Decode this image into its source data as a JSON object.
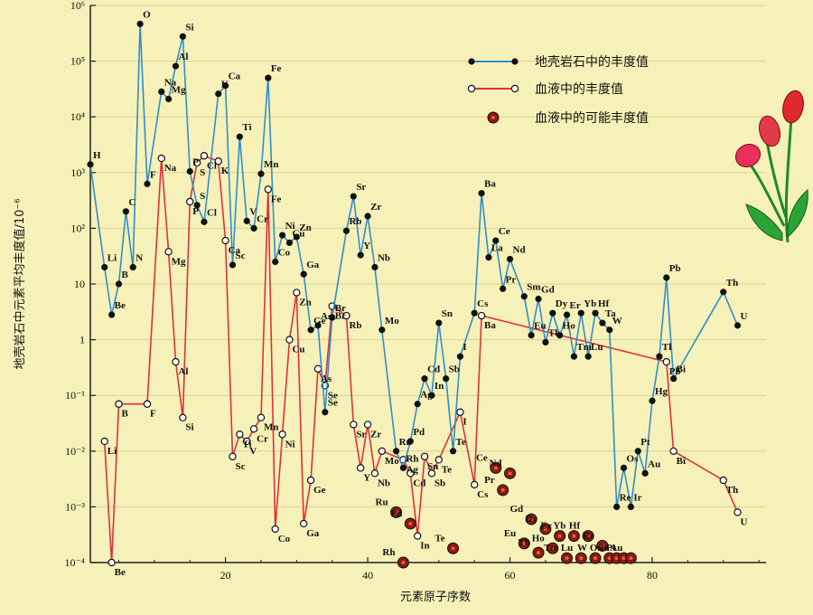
{
  "chart_data": {
    "type": "line",
    "xlabel": "元素原子序数",
    "ylabel": "地壳岩石中元素平均丰度值/10⁻⁶",
    "y_scale": "log",
    "ylim": [
      0.0001,
      1000000
    ],
    "xlim": [
      1,
      96
    ],
    "x_ticks": [
      20,
      40,
      60,
      80
    ],
    "y_ticks": [
      "10⁻⁴",
      "10⁻³",
      "10⁻²",
      "10⁻¹",
      "1",
      "10",
      "10²",
      "10³",
      "10⁴",
      "10⁵",
      "10⁶"
    ],
    "legend_placement": "top-right",
    "colors": {
      "crust": "#2f8fc8",
      "blood": "#e0303a",
      "possible": "#8a1a10",
      "marker": "#111111"
    },
    "legend": [
      {
        "label": "地壳岩石中的丰度值",
        "marker": "filled"
      },
      {
        "label": "血液中的丰度值",
        "marker": "open"
      },
      {
        "label": "血液中的可能丰度值",
        "marker": "possible"
      }
    ],
    "series": [
      {
        "name": "地壳岩石中的丰度值",
        "points": [
          {
            "x": 1,
            "y": 1400,
            "label": "H"
          },
          {
            "x": 3,
            "y": 20,
            "label": "Li"
          },
          {
            "x": 4,
            "y": 2.8,
            "label": "Be"
          },
          {
            "x": 5,
            "y": 10,
            "label": "B"
          },
          {
            "x": 6,
            "y": 200,
            "label": "C"
          },
          {
            "x": 7,
            "y": 20,
            "label": "N"
          },
          {
            "x": 8,
            "y": 466000,
            "label": "O"
          },
          {
            "x": 9,
            "y": 625,
            "label": "F"
          },
          {
            "x": 11,
            "y": 28300,
            "label": "Na"
          },
          {
            "x": 12,
            "y": 20900,
            "label": "Mg"
          },
          {
            "x": 13,
            "y": 81300,
            "label": "Al"
          },
          {
            "x": 14,
            "y": 277200,
            "label": "Si"
          },
          {
            "x": 15,
            "y": 1050,
            "label": "P"
          },
          {
            "x": 16,
            "y": 260,
            "label": "S"
          },
          {
            "x": 17,
            "y": 130,
            "label": "Cl"
          },
          {
            "x": 19,
            "y": 25900,
            "label": "K"
          },
          {
            "x": 20,
            "y": 36300,
            "label": "Ca"
          },
          {
            "x": 21,
            "y": 22,
            "label": "Sc"
          },
          {
            "x": 22,
            "y": 4400,
            "label": "Ti"
          },
          {
            "x": 23,
            "y": 135,
            "label": "V"
          },
          {
            "x": 24,
            "y": 100,
            "label": "Cr"
          },
          {
            "x": 25,
            "y": 950,
            "label": "Mn"
          },
          {
            "x": 26,
            "y": 50000,
            "label": "Fe"
          },
          {
            "x": 27,
            "y": 25,
            "label": "Co"
          },
          {
            "x": 28,
            "y": 75,
            "label": "Ni"
          },
          {
            "x": 29,
            "y": 55,
            "label": "Cu"
          },
          {
            "x": 30,
            "y": 70,
            "label": "Zn"
          },
          {
            "x": 31,
            "y": 15,
            "label": "Ga"
          },
          {
            "x": 32,
            "y": 1.5,
            "label": "Ge"
          },
          {
            "x": 33,
            "y": 1.8,
            "label": "As"
          },
          {
            "x": 34,
            "y": 0.05,
            "label": "Se"
          },
          {
            "x": 35,
            "y": 2.5,
            "label": "Br"
          },
          {
            "x": 37,
            "y": 90,
            "label": "Rb"
          },
          {
            "x": 38,
            "y": 375,
            "label": "Sr"
          },
          {
            "x": 39,
            "y": 33,
            "label": "Y"
          },
          {
            "x": 40,
            "y": 165,
            "label": "Zr"
          },
          {
            "x": 41,
            "y": 20,
            "label": "Nb"
          },
          {
            "x": 42,
            "y": 1.5,
            "label": "Mo"
          },
          {
            "x": 44,
            "y": 0.01,
            "label": "Ru"
          },
          {
            "x": 45,
            "y": 0.005,
            "label": "Rh"
          },
          {
            "x": 46,
            "y": 0.015,
            "label": "Pd"
          },
          {
            "x": 47,
            "y": 0.07,
            "label": "Ag"
          },
          {
            "x": 48,
            "y": 0.2,
            "label": "Cd"
          },
          {
            "x": 49,
            "y": 0.1,
            "label": "In"
          },
          {
            "x": 50,
            "y": 2,
            "label": "Sn"
          },
          {
            "x": 51,
            "y": 0.2,
            "label": "Sb"
          },
          {
            "x": 52,
            "y": 0.01,
            "label": "Te"
          },
          {
            "x": 53,
            "y": 0.5,
            "label": "I"
          },
          {
            "x": 55,
            "y": 3,
            "label": "Cs"
          },
          {
            "x": 56,
            "y": 425,
            "label": "Ba"
          },
          {
            "x": 57,
            "y": 30,
            "label": "La"
          },
          {
            "x": 58,
            "y": 60,
            "label": "Ce"
          },
          {
            "x": 59,
            "y": 8.2,
            "label": "Pr"
          },
          {
            "x": 60,
            "y": 28,
            "label": "Nd"
          },
          {
            "x": 62,
            "y": 6,
            "label": "Sm"
          },
          {
            "x": 63,
            "y": 1.2,
            "label": "Eu"
          },
          {
            "x": 64,
            "y": 5.4,
            "label": "Gd"
          },
          {
            "x": 65,
            "y": 0.9,
            "label": "Tb"
          },
          {
            "x": 66,
            "y": 3,
            "label": "Dy"
          },
          {
            "x": 67,
            "y": 1.2,
            "label": "Ho"
          },
          {
            "x": 68,
            "y": 2.8,
            "label": "Er"
          },
          {
            "x": 69,
            "y": 0.5,
            "label": "Tm"
          },
          {
            "x": 70,
            "y": 3,
            "label": "Yb"
          },
          {
            "x": 71,
            "y": 0.5,
            "label": "Lu"
          },
          {
            "x": 72,
            "y": 3,
            "label": "Hf"
          },
          {
            "x": 73,
            "y": 2,
            "label": "Ta"
          },
          {
            "x": 74,
            "y": 1.5,
            "label": "W"
          },
          {
            "x": 75,
            "y": 0.001,
            "label": "Re"
          },
          {
            "x": 76,
            "y": 0.005,
            "label": "Os"
          },
          {
            "x": 77,
            "y": 0.001,
            "label": "Ir"
          },
          {
            "x": 78,
            "y": 0.01,
            "label": "Pt"
          },
          {
            "x": 79,
            "y": 0.004,
            "label": "Au"
          },
          {
            "x": 80,
            "y": 0.08,
            "label": "Hg"
          },
          {
            "x": 81,
            "y": 0.5,
            "label": "Tl"
          },
          {
            "x": 82,
            "y": 13,
            "label": "Pb"
          },
          {
            "x": 83,
            "y": 0.2,
            "label": "Bi"
          },
          {
            "x": 90,
            "y": 7.2,
            "label": "Th"
          },
          {
            "x": 92,
            "y": 1.8,
            "label": "U"
          }
        ]
      },
      {
        "name": "血液中的丰度值",
        "points": [
          {
            "x": 3,
            "y": 0.015,
            "label": "Li"
          },
          {
            "x": 4,
            "y": 0.0001,
            "label": "Be"
          },
          {
            "x": 5,
            "y": 0.07,
            "label": "B"
          },
          {
            "x": 9,
            "y": 0.07,
            "label": "F"
          },
          {
            "x": 11,
            "y": 1800,
            "label": "Na"
          },
          {
            "x": 12,
            "y": 38,
            "label": "Mg"
          },
          {
            "x": 13,
            "y": 0.4,
            "label": "Al"
          },
          {
            "x": 14,
            "y": 0.04,
            "label": "Si"
          },
          {
            "x": 15,
            "y": 300,
            "label": "P"
          },
          {
            "x": 16,
            "y": 1500,
            "label": "S"
          },
          {
            "x": 17,
            "y": 2000,
            "label": "Cl"
          },
          {
            "x": 19,
            "y": 1600,
            "label": "K"
          },
          {
            "x": 20,
            "y": 60,
            "label": "Ca"
          },
          {
            "x": 21,
            "y": 0.008,
            "label": "Sc"
          },
          {
            "x": 22,
            "y": 0.02,
            "label": "Ti"
          },
          {
            "x": 23,
            "y": 0.015,
            "label": "V"
          },
          {
            "x": 24,
            "y": 0.025,
            "label": "Cr"
          },
          {
            "x": 25,
            "y": 0.04,
            "label": "Mn"
          },
          {
            "x": 26,
            "y": 500,
            "label": "Fe"
          },
          {
            "x": 27,
            "y": 0.0004,
            "label": "Co"
          },
          {
            "x": 28,
            "y": 0.02,
            "label": "Ni"
          },
          {
            "x": 29,
            "y": 1,
            "label": "Cu"
          },
          {
            "x": 30,
            "y": 7,
            "label": "Zn"
          },
          {
            "x": 31,
            "y": 0.0005,
            "label": "Ga"
          },
          {
            "x": 32,
            "y": 0.003,
            "label": "Ge"
          },
          {
            "x": 33,
            "y": 0.3,
            "label": "As"
          },
          {
            "x": 34,
            "y": 0.15,
            "label": "Se"
          },
          {
            "x": 35,
            "y": 4,
            "label": "Br"
          },
          {
            "x": 37,
            "y": 2.7,
            "label": "Rb"
          },
          {
            "x": 38,
            "y": 0.03,
            "label": "Sr"
          },
          {
            "x": 39,
            "y": 0.005,
            "label": "Y"
          },
          {
            "x": 40,
            "y": 0.03,
            "label": "Zr"
          },
          {
            "x": 41,
            "y": 0.004,
            "label": "Nb"
          },
          {
            "x": 42,
            "y": 0.01,
            "label": "Mo"
          },
          {
            "x": 45,
            "y": 0.007,
            "label": "Ag"
          },
          {
            "x": 46,
            "y": 0.004,
            "label": "Cd"
          },
          {
            "x": 47,
            "y": 0.0003,
            "label": "In"
          },
          {
            "x": 48,
            "y": 0.008,
            "label": "Sn"
          },
          {
            "x": 49,
            "y": 0.004,
            "label": "Sb"
          },
          {
            "x": 50,
            "y": 0.007,
            "label": "Te"
          },
          {
            "x": 53,
            "y": 0.05,
            "label": "I"
          },
          {
            "x": 55,
            "y": 0.0025,
            "label": "Cs"
          },
          {
            "x": 56,
            "y": 2.7,
            "label": "Ba"
          },
          {
            "x": 82,
            "y": 0.4,
            "label": "Pb"
          },
          {
            "x": 83,
            "y": 0.01,
            "label": "Bi"
          },
          {
            "x": 90,
            "y": 0.003,
            "label": "Th"
          },
          {
            "x": 92,
            "y": 0.0008,
            "label": "U"
          }
        ]
      },
      {
        "name": "血液中的可能丰度值",
        "points": [
          {
            "x": 44,
            "y": 0.0008,
            "label": "Ru"
          },
          {
            "x": 45,
            "y": 0.0001,
            "label": "Rh"
          },
          {
            "x": 46,
            "y": 0.0005,
            "label": "Pd"
          },
          {
            "x": 52,
            "y": 0.00018,
            "label": "Te"
          },
          {
            "x": 58,
            "y": 0.005,
            "label": "Ce"
          },
          {
            "x": 59,
            "y": 0.002,
            "label": "Pr"
          },
          {
            "x": 60,
            "y": 0.004,
            "label": "Nd"
          },
          {
            "x": 62,
            "y": 0.00022,
            "label": "Eu"
          },
          {
            "x": 63,
            "y": 0.0006,
            "label": "Gd"
          },
          {
            "x": 64,
            "y": 0.00015,
            "label": "Tb"
          },
          {
            "x": 65,
            "y": 0.0004,
            "label": "Dy"
          },
          {
            "x": 66,
            "y": 0.00018,
            "label": "Ho"
          },
          {
            "x": 67,
            "y": 0.0003,
            "label": "Er"
          },
          {
            "x": 68,
            "y": 0.00012,
            "label": "Tm"
          },
          {
            "x": 69,
            "y": 0.0003,
            "label": "Yb"
          },
          {
            "x": 70,
            "y": 0.00012,
            "label": "Lu"
          },
          {
            "x": 71,
            "y": 0.0003,
            "label": "Hf"
          },
          {
            "x": 72,
            "y": 0.00012,
            "label": "W"
          },
          {
            "x": 73,
            "y": 0.0002,
            "label": "Re"
          },
          {
            "x": 74,
            "y": 0.00012,
            "label": "Os"
          },
          {
            "x": 75,
            "y": 0.00012,
            "label": "Ir"
          },
          {
            "x": 76,
            "y": 0.00012,
            "label": "Pt"
          },
          {
            "x": 77,
            "y": 0.00012,
            "label": "Au"
          }
        ]
      }
    ]
  }
}
